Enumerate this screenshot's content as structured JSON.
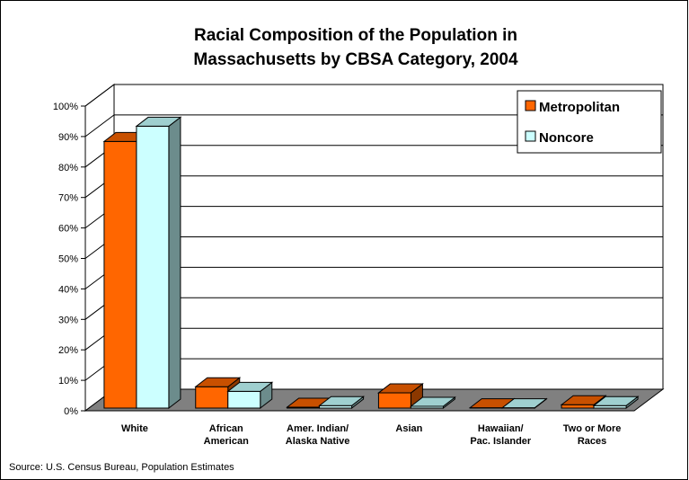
{
  "chart_data": {
    "type": "bar",
    "title_lines": [
      "Racial Composition of the Population in",
      "Massachusetts by CBSA Category, 2004"
    ],
    "categories": [
      [
        "White"
      ],
      [
        "African",
        "American"
      ],
      [
        "Amer. Indian/",
        "Alaska Native"
      ],
      [
        "Asian"
      ],
      [
        "Hawaiian/",
        "Pac. Islander"
      ],
      [
        "Two or More",
        "Races"
      ]
    ],
    "series": [
      {
        "name": "Metropolitan",
        "values": [
          87.5,
          7.0,
          0.3,
          5.0,
          0.1,
          1.1
        ],
        "color": "#ff6600",
        "top_color": "#c85000",
        "side_color": "#8c3800"
      },
      {
        "name": "Noncore",
        "values": [
          92.5,
          5.5,
          0.8,
          0.6,
          0.1,
          0.8
        ],
        "color": "#ccffff",
        "top_color": "#9fcfcf",
        "side_color": "#6c8c8c"
      }
    ],
    "ylim": [
      0,
      100
    ],
    "yticks": [
      "0%",
      "10%",
      "20%",
      "30%",
      "40%",
      "50%",
      "60%",
      "70%",
      "80%",
      "90%",
      "100%"
    ],
    "grid": true,
    "legend_position": "top-right",
    "three_d": true
  },
  "source": "Source: U.S. Census Bureau, Population Estimates",
  "colors": {
    "floor": "#808080",
    "wall": "#ffffff",
    "grid": "#000000"
  }
}
